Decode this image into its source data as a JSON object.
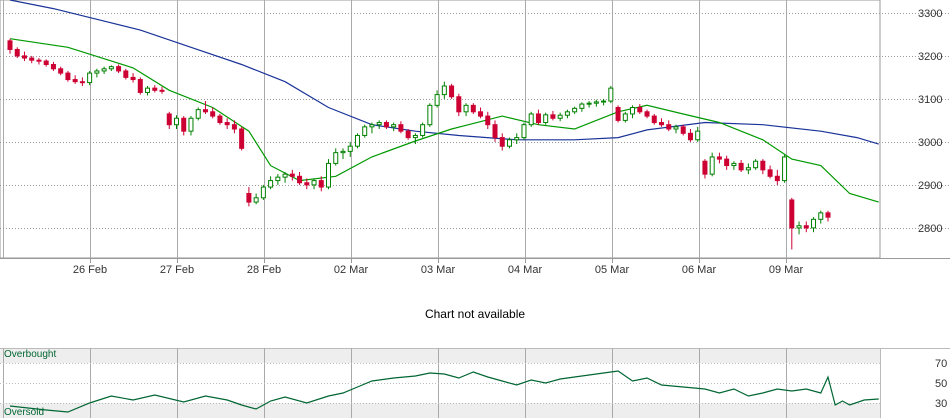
{
  "chart_data": [
    {
      "type": "candlestick",
      "ylim": [
        2730,
        3330
      ],
      "y_ticks": [
        "3300",
        "3200",
        "3100",
        "3000",
        "2900",
        "2800"
      ],
      "y_tick_values": [
        3300,
        3200,
        3100,
        3000,
        2900,
        2800
      ],
      "x_labels": [
        "26 Feb",
        "27 Feb",
        "28 Feb",
        "02 Mar",
        "03 Mar",
        "04 Mar",
        "05 Mar",
        "06 Mar",
        "09 Mar"
      ],
      "grid": true,
      "colors": {
        "up": "#008000",
        "down": "#cc0033",
        "sma_short": "#009900",
        "sma_long": "#1a3399",
        "grid": "#999999"
      },
      "candles": [
        [
          3235,
          3240,
          3205,
          3215
        ],
        [
          3215,
          3220,
          3195,
          3200
        ],
        [
          3200,
          3210,
          3188,
          3195
        ],
        [
          3195,
          3200,
          3183,
          3190
        ],
        [
          3190,
          3195,
          3180,
          3188
        ],
        [
          3188,
          3192,
          3175,
          3180
        ],
        [
          3180,
          3186,
          3165,
          3170
        ],
        [
          3170,
          3175,
          3155,
          3160
        ],
        [
          3160,
          3165,
          3140,
          3145
        ],
        [
          3145,
          3155,
          3135,
          3140
        ],
        [
          3140,
          3150,
          3130,
          3138
        ],
        [
          3138,
          3165,
          3132,
          3160
        ],
        [
          3160,
          3170,
          3150,
          3165
        ],
        [
          3165,
          3175,
          3158,
          3170
        ],
        [
          3170,
          3178,
          3165,
          3175
        ],
        [
          3175,
          3180,
          3160,
          3165
        ],
        [
          3165,
          3170,
          3145,
          3150
        ],
        [
          3150,
          3160,
          3138,
          3145
        ],
        [
          3145,
          3150,
          3110,
          3115
        ],
        [
          3115,
          3130,
          3108,
          3125
        ],
        [
          3125,
          3132,
          3115,
          3120
        ],
        [
          3120,
          3128,
          3112,
          3118
        ],
        [
          3065,
          3070,
          3030,
          3040
        ],
        [
          3040,
          3062,
          3030,
          3055
        ],
        [
          3055,
          3060,
          3015,
          3025
        ],
        [
          3025,
          3060,
          3015,
          3055
        ],
        [
          3055,
          3080,
          3050,
          3075
        ],
        [
          3075,
          3095,
          3065,
          3070
        ],
        [
          3070,
          3080,
          3055,
          3060
        ],
        [
          3060,
          3065,
          3040,
          3045
        ],
        [
          3045,
          3055,
          3030,
          3040
        ],
        [
          3040,
          3050,
          3020,
          3030
        ],
        [
          3030,
          3035,
          2980,
          2985
        ],
        [
          2880,
          2895,
          2850,
          2860
        ],
        [
          2860,
          2880,
          2855,
          2870
        ],
        [
          2870,
          2900,
          2865,
          2895
        ],
        [
          2895,
          2920,
          2890,
          2910
        ],
        [
          2910,
          2925,
          2900,
          2918
        ],
        [
          2918,
          2930,
          2905,
          2925
        ],
        [
          2925,
          2935,
          2910,
          2920
        ],
        [
          2920,
          2930,
          2900,
          2905
        ],
        [
          2905,
          2915,
          2890,
          2900
        ],
        [
          2900,
          2915,
          2890,
          2910
        ],
        [
          2910,
          2920,
          2885,
          2895
        ],
        [
          2895,
          2960,
          2890,
          2950
        ],
        [
          2950,
          2985,
          2945,
          2975
        ],
        [
          2975,
          2985,
          2960,
          2978
        ],
        [
          2978,
          3000,
          2965,
          2990
        ],
        [
          2990,
          3020,
          2985,
          3015
        ],
        [
          3015,
          3040,
          3010,
          3035
        ],
        [
          3035,
          3045,
          3020,
          3040
        ],
        [
          3040,
          3050,
          3030,
          3045
        ],
        [
          3045,
          3050,
          3030,
          3035
        ],
        [
          3035,
          3045,
          3025,
          3040
        ],
        [
          3040,
          3048,
          3020,
          3025
        ],
        [
          3025,
          3030,
          3005,
          3010
        ],
        [
          3010,
          3020,
          2995,
          3015
        ],
        [
          3015,
          3045,
          3010,
          3040
        ],
        [
          3040,
          3090,
          3035,
          3085
        ],
        [
          3085,
          3120,
          3080,
          3110
        ],
        [
          3110,
          3140,
          3100,
          3130
        ],
        [
          3130,
          3135,
          3100,
          3105
        ],
        [
          3105,
          3112,
          3060,
          3070
        ],
        [
          3070,
          3090,
          3060,
          3085
        ],
        [
          3085,
          3090,
          3065,
          3070
        ],
        [
          3070,
          3080,
          3055,
          3060
        ],
        [
          3060,
          3070,
          3030,
          3040
        ],
        [
          3040,
          3050,
          3000,
          3010
        ],
        [
          3010,
          3020,
          2980,
          2990
        ],
        [
          2990,
          3010,
          2985,
          3005
        ],
        [
          3005,
          3020,
          2995,
          3010
        ],
        [
          3010,
          3045,
          3005,
          3040
        ],
        [
          3040,
          3070,
          3035,
          3065
        ],
        [
          3065,
          3075,
          3040,
          3045
        ],
        [
          3045,
          3068,
          3040,
          3063
        ],
        [
          3063,
          3072,
          3050,
          3055
        ],
        [
          3055,
          3068,
          3048,
          3062
        ],
        [
          3062,
          3075,
          3055,
          3070
        ],
        [
          3070,
          3082,
          3065,
          3078
        ],
        [
          3078,
          3092,
          3070,
          3088
        ],
        [
          3088,
          3095,
          3080,
          3090
        ],
        [
          3090,
          3098,
          3082,
          3093
        ],
        [
          3093,
          3100,
          3085,
          3095
        ],
        [
          3095,
          3130,
          3090,
          3125
        ],
        [
          3080,
          3085,
          3045,
          3050
        ],
        [
          3050,
          3070,
          3045,
          3065
        ],
        [
          3065,
          3085,
          3055,
          3080
        ],
        [
          3080,
          3088,
          3065,
          3070
        ],
        [
          3070,
          3075,
          3055,
          3060
        ],
        [
          3060,
          3065,
          3040,
          3045
        ],
        [
          3045,
          3055,
          3035,
          3040
        ],
        [
          3040,
          3050,
          3025,
          3030
        ],
        [
          3030,
          3040,
          3020,
          3035
        ],
        [
          3035,
          3040,
          3015,
          3020
        ],
        [
          3020,
          3030,
          3000,
          3005
        ],
        [
          3005,
          3035,
          3000,
          3025
        ],
        [
          2955,
          2960,
          2915,
          2925
        ],
        [
          2925,
          2975,
          2920,
          2965
        ],
        [
          2965,
          2975,
          2950,
          2960
        ],
        [
          2960,
          2968,
          2935,
          2945
        ],
        [
          2945,
          2955,
          2935,
          2950
        ],
        [
          2950,
          2958,
          2930,
          2935
        ],
        [
          2935,
          2950,
          2925,
          2940
        ],
        [
          2940,
          2960,
          2935,
          2955
        ],
        [
          2955,
          2960,
          2925,
          2935
        ],
        [
          2935,
          2945,
          2915,
          2920
        ],
        [
          2920,
          2935,
          2900,
          2910
        ],
        [
          2910,
          2970,
          2905,
          2965
        ],
        [
          2865,
          2870,
          2750,
          2800
        ],
        [
          2800,
          2815,
          2785,
          2805
        ],
        [
          2805,
          2815,
          2790,
          2800
        ],
        [
          2800,
          2825,
          2790,
          2820
        ],
        [
          2820,
          2840,
          2810,
          2835
        ],
        [
          2835,
          2840,
          2815,
          2825
        ]
      ],
      "series": [
        {
          "kind": "sma_short",
          "values": [
            [
              0,
              3240
            ],
            [
              8,
              3220
            ],
            [
              17,
              3172
            ],
            [
              22,
              3120
            ],
            [
              28,
              3080
            ],
            [
              33,
              3025
            ],
            [
              36,
              2945
            ],
            [
              40,
              2910
            ],
            [
              45,
              2920
            ],
            [
              50,
              2965
            ],
            [
              56,
              3002
            ],
            [
              61,
              3030
            ],
            [
              68,
              3060
            ],
            [
              73,
              3040
            ],
            [
              78,
              3030
            ],
            [
              84,
              3070
            ],
            [
              88,
              3085
            ],
            [
              93,
              3065
            ],
            [
              98,
              3045
            ],
            [
              104,
              3005
            ],
            [
              108,
              2960
            ],
            [
              112,
              2945
            ],
            [
              116,
              2880
            ],
            [
              120,
              2860
            ]
          ]
        },
        {
          "kind": "sma_long",
          "values": [
            [
              0,
              3330
            ],
            [
              6,
              3310
            ],
            [
              12,
              3285
            ],
            [
              18,
              3260
            ],
            [
              25,
              3220
            ],
            [
              32,
              3180
            ],
            [
              38,
              3140
            ],
            [
              44,
              3080
            ],
            [
              50,
              3040
            ],
            [
              56,
              3025
            ],
            [
              62,
              3015
            ],
            [
              70,
              3005
            ],
            [
              78,
              3005
            ],
            [
              84,
              3010
            ],
            [
              88,
              3028
            ],
            [
              96,
              3045
            ],
            [
              104,
              3040
            ],
            [
              112,
              3025
            ],
            [
              117,
              3010
            ],
            [
              120,
              2995
            ]
          ]
        }
      ]
    },
    {
      "type": "line",
      "ylim": [
        15,
        85
      ],
      "y_ticks": [
        "70",
        "50",
        "30"
      ],
      "y_tick_values": [
        70,
        50,
        30
      ],
      "band_labels": {
        "top": "Overbought",
        "bottom": "Oversold"
      },
      "colors": {
        "line": "#006633",
        "band": "#eeeeee"
      },
      "values": [
        [
          0,
          27
        ],
        [
          5,
          23
        ],
        [
          8,
          21
        ],
        [
          11,
          30
        ],
        [
          14,
          37
        ],
        [
          17,
          33
        ],
        [
          20,
          38
        ],
        [
          24,
          31
        ],
        [
          27,
          37
        ],
        [
          30,
          33
        ],
        [
          32,
          28
        ],
        [
          34,
          24
        ],
        [
          36,
          32
        ],
        [
          38,
          36
        ],
        [
          41,
          30
        ],
        [
          44,
          37
        ],
        [
          46,
          40
        ],
        [
          48,
          46
        ],
        [
          50,
          52
        ],
        [
          53,
          55
        ],
        [
          56,
          57
        ],
        [
          58,
          60
        ],
        [
          60,
          59
        ],
        [
          62,
          55
        ],
        [
          64,
          61
        ],
        [
          66,
          56
        ],
        [
          68,
          52
        ],
        [
          70,
          48
        ],
        [
          72,
          53
        ],
        [
          74,
          50
        ],
        [
          76,
          54
        ],
        [
          78,
          56
        ],
        [
          80,
          58
        ],
        [
          82,
          60
        ],
        [
          84,
          62
        ],
        [
          86,
          52
        ],
        [
          88,
          55
        ],
        [
          90,
          48
        ],
        [
          93,
          46
        ],
        [
          96,
          44
        ],
        [
          98,
          40
        ],
        [
          100,
          44
        ],
        [
          102,
          37
        ],
        [
          104,
          40
        ],
        [
          106,
          44
        ],
        [
          108,
          42
        ],
        [
          110,
          44
        ],
        [
          112,
          40
        ],
        [
          113,
          56
        ],
        [
          114,
          28
        ],
        [
          115,
          32
        ],
        [
          116,
          28
        ],
        [
          118,
          33
        ],
        [
          120,
          34
        ]
      ]
    }
  ],
  "message": "Chart not available"
}
